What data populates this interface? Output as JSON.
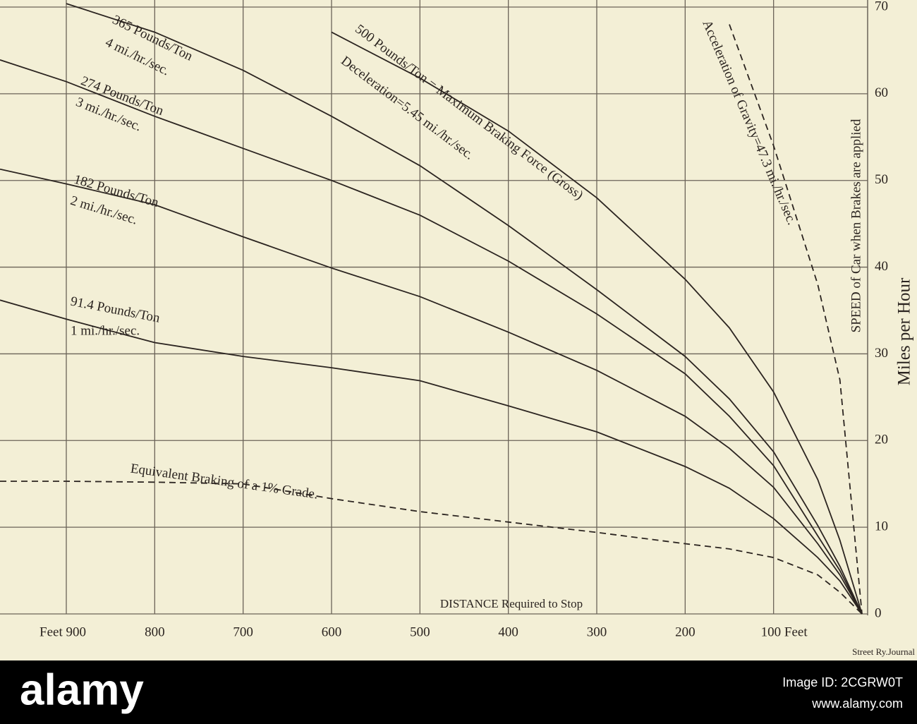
{
  "chart_data": {
    "type": "line",
    "x_label": "DISTANCE Required to Stop",
    "y_label": "Miles per Hour",
    "y_sublabel": "SPEED of Car when Brakes are applied",
    "source": "Street Ry.Journal",
    "x": [
      975,
      900,
      800,
      700,
      600,
      500,
      400,
      300,
      200,
      150,
      100,
      50,
      25,
      0
    ],
    "series": [
      {
        "name": "91.4 Pounds/Ton",
        "rate": "1 mi./hr./sec.",
        "color": "#2b2420",
        "dashed": false,
        "values": [
          36.2,
          34.0,
          31.3,
          29.7,
          28.4,
          26.9,
          24.0,
          21.0,
          17.0,
          14.5,
          11.0,
          6.5,
          3.8,
          0
        ]
      },
      {
        "name": "182 Pounds/Ton",
        "rate": "2 mi./hr./sec.",
        "color": "#2b2420",
        "dashed": false,
        "values": [
          51.3,
          49.6,
          47.2,
          43.5,
          39.9,
          36.6,
          32.5,
          28.1,
          22.8,
          19.1,
          14.6,
          8.1,
          4.5,
          0
        ]
      },
      {
        "name": "274 Pounds/Ton",
        "rate": "3 mi./hr./sec.",
        "color": "#2b2420",
        "dashed": false,
        "values": [
          63.9,
          61.4,
          57.4,
          53.7,
          50.0,
          46.0,
          40.7,
          34.6,
          27.7,
          22.8,
          17.1,
          9.0,
          5.0,
          0
        ]
      },
      {
        "name": "365 Pounds/Ton",
        "rate": "4 mi./hr./sec.",
        "color": "#2b2420",
        "dashed": false,
        "values": [
          null,
          70.4,
          67.1,
          62.7,
          57.4,
          51.7,
          44.8,
          37.4,
          29.7,
          24.8,
          18.7,
          10.2,
          5.5,
          0
        ]
      },
      {
        "name": "500 Pounds/Ton = Maximum Braking Force (Gross)",
        "rate": "Deceleration=5.45 mi./hr./sec.",
        "color": "#2b2420",
        "dashed": false,
        "values": [
          null,
          null,
          null,
          null,
          67.1,
          61.8,
          55.7,
          48.0,
          38.6,
          33.0,
          25.6,
          15.5,
          8.5,
          0
        ]
      },
      {
        "name": "Acceleration of Gravity=47.3 mi./hr./sec.",
        "color": "#2b2420",
        "dashed": true,
        "values": [
          null,
          null,
          null,
          null,
          null,
          null,
          null,
          null,
          null,
          68.0,
          54.0,
          38.0,
          27.0,
          0
        ]
      },
      {
        "name": "Equivalent Braking of a 1% Grade.",
        "color": "#2b2420",
        "dashed": true,
        "values": [
          15.3,
          15.3,
          15.2,
          15.0,
          13.3,
          11.8,
          10.6,
          9.4,
          8.1,
          7.5,
          6.5,
          4.5,
          2.5,
          0
        ]
      }
    ],
    "xlim": [
      975,
      0
    ],
    "ylim": [
      0,
      70
    ],
    "xticks": [
      {
        "value": 900,
        "label": "Feet 900"
      },
      800,
      700,
      600,
      500,
      400,
      300,
      200,
      {
        "value": 100,
        "label": "100 Feet"
      }
    ],
    "yticks": [
      0,
      10,
      20,
      30,
      40,
      50,
      60,
      70
    ],
    "grid": true
  },
  "banner": {
    "logo": "alamy",
    "image_id": "Image ID: 2CGRW0T",
    "url": "www.alamy.com"
  }
}
